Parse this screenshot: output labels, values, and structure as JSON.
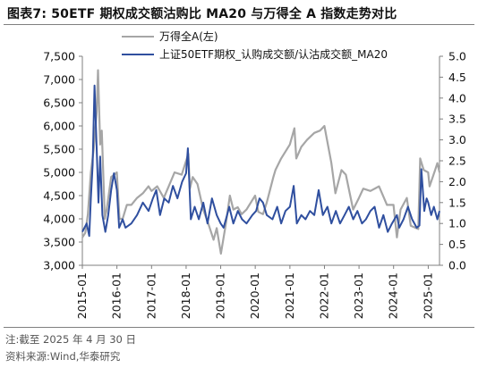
{
  "header": {
    "title": "图表7:  50ETF 期权成交额沽购比 MA20 与万得全 A 指数走势对比"
  },
  "footer": {
    "note": "注:截至 2025 年 4 月 30 日",
    "source": "资料来源:Wind,华泰研究"
  },
  "colors": {
    "wind_a": "#a6a6a6",
    "ratio_ma20": "#2f4f9f",
    "axis": "#7f7f7f"
  },
  "chart_data": {
    "type": "line",
    "title": "",
    "x_ticks": [
      "2015-01",
      "2016-01",
      "2017-01",
      "2018-01",
      "2019-01",
      "2020-01",
      "2021-01",
      "2022-01",
      "2023-01",
      "2024-01",
      "2025-01"
    ],
    "x_range": [
      "2015-01-01",
      "2025-04-30"
    ],
    "left_axis": {
      "ylim": [
        3000,
        7500
      ],
      "ticks": [
        "3,000",
        "3,500",
        "4,000",
        "4,500",
        "5,000",
        "5,500",
        "6,000",
        "6,500",
        "7,000",
        "7,500"
      ]
    },
    "right_axis": {
      "ylim": [
        0.0,
        5.0
      ],
      "ticks": [
        "0.0",
        "0.5",
        "1.0",
        "1.5",
        "2.0",
        "2.5",
        "3.0",
        "3.5",
        "4.0",
        "4.5",
        "5.0"
      ]
    },
    "legend": [
      "万得全A(左)",
      "上证50ETF期权_认购成交额/认沽成交额_MA20"
    ],
    "series": [
      {
        "name": "万得全A(左)",
        "axis": "left",
        "x": [
          "2015-01-01",
          "2015-02-01",
          "2015-03-01",
          "2015-04-01",
          "2015-05-01",
          "2015-06-01",
          "2015-06-15",
          "2015-07-08",
          "2015-07-25",
          "2015-08-26",
          "2015-09-15",
          "2015-11-01",
          "2015-12-31",
          "2016-01-28",
          "2016-03-01",
          "2016-04-15",
          "2016-06-01",
          "2016-08-01",
          "2016-10-01",
          "2016-11-30",
          "2017-01-01",
          "2017-03-01",
          "2017-05-10",
          "2017-07-01",
          "2017-09-01",
          "2017-11-15",
          "2018-01-24",
          "2018-02-09",
          "2018-03-12",
          "2018-05-01",
          "2018-06-30",
          "2018-08-15",
          "2018-10-18",
          "2018-11-20",
          "2019-01-03",
          "2019-02-25",
          "2019-04-08",
          "2019-05-15",
          "2019-06-30",
          "2019-08-10",
          "2019-10-01",
          "2019-12-31",
          "2020-02-03",
          "2020-03-23",
          "2020-05-01",
          "2020-07-10",
          "2020-08-01",
          "2020-10-01",
          "2020-12-31",
          "2021-02-18",
          "2021-03-09",
          "2021-05-01",
          "2021-07-01",
          "2021-09-15",
          "2021-11-15",
          "2021-12-31",
          "2022-03-15",
          "2022-04-27",
          "2022-06-30",
          "2022-08-15",
          "2022-10-31",
          "2022-12-31",
          "2023-02-15",
          "2023-05-01",
          "2023-07-31",
          "2023-10-23",
          "2023-12-31",
          "2024-02-05",
          "2024-03-15",
          "2024-05-20",
          "2024-07-01",
          "2024-09-18",
          "2024-10-08",
          "2024-11-15",
          "2024-12-31",
          "2025-01-15",
          "2025-03-15",
          "2025-04-07",
          "2025-04-30"
        ],
        "values": [
          3600,
          3700,
          4100,
          5000,
          5500,
          6300,
          7200,
          5600,
          5900,
          4000,
          4200,
          4900,
          5000,
          4000,
          4000,
          4300,
          4300,
          4450,
          4550,
          4700,
          4600,
          4700,
          4450,
          4700,
          5000,
          4950,
          5400,
          4650,
          4900,
          4750,
          4200,
          3950,
          3550,
          3800,
          3250,
          3900,
          4500,
          4200,
          4250,
          4100,
          4200,
          4500,
          4150,
          4100,
          4350,
          4900,
          5050,
          5300,
          5600,
          5950,
          5300,
          5550,
          5700,
          5850,
          5900,
          6000,
          5200,
          4550,
          5050,
          4950,
          4200,
          4450,
          4650,
          4600,
          4700,
          4300,
          4300,
          3600,
          4200,
          4450,
          3850,
          3780,
          5300,
          5050,
          5000,
          4700,
          5050,
          5200,
          5000
        ]
      },
      {
        "name": "上证50ETF期权_认购成交额/认沽成交额_MA20",
        "axis": "right",
        "x": [
          "2015-01-01",
          "2015-02-15",
          "2015-03-15",
          "2015-04-01",
          "2015-04-20",
          "2015-05-10",
          "2015-06-01",
          "2015-06-20",
          "2015-07-08",
          "2015-08-01",
          "2015-09-01",
          "2015-10-01",
          "2015-11-01",
          "2015-12-01",
          "2016-01-01",
          "2016-01-25",
          "2016-03-01",
          "2016-04-01",
          "2016-06-01",
          "2016-08-01",
          "2016-10-01",
          "2016-12-01",
          "2017-01-15",
          "2017-02-20",
          "2017-04-01",
          "2017-05-15",
          "2017-07-01",
          "2017-08-15",
          "2017-10-01",
          "2017-11-20",
          "2018-01-01",
          "2018-01-20",
          "2018-02-20",
          "2018-04-01",
          "2018-05-15",
          "2018-07-01",
          "2018-08-15",
          "2018-10-01",
          "2018-11-20",
          "2019-01-01",
          "2019-02-01",
          "2019-02-25",
          "2019-04-01",
          "2019-05-15",
          "2019-07-01",
          "2019-08-15",
          "2019-10-01",
          "2019-12-01",
          "2020-01-10",
          "2020-02-15",
          "2020-03-23",
          "2020-05-01",
          "2020-07-01",
          "2020-08-20",
          "2020-10-01",
          "2020-11-15",
          "2021-01-01",
          "2021-02-10",
          "2021-03-15",
          "2021-05-01",
          "2021-06-15",
          "2021-08-01",
          "2021-09-15",
          "2021-11-01",
          "2021-12-15",
          "2022-02-01",
          "2022-03-15",
          "2022-05-01",
          "2022-06-15",
          "2022-08-01",
          "2022-09-15",
          "2022-11-01",
          "2022-12-15",
          "2023-02-01",
          "2023-03-15",
          "2023-05-01",
          "2023-06-15",
          "2023-08-01",
          "2023-09-15",
          "2023-11-01",
          "2023-12-15",
          "2024-02-05",
          "2024-03-01",
          "2024-04-15",
          "2024-06-01",
          "2024-07-15",
          "2024-09-01",
          "2024-09-30",
          "2024-10-20",
          "2024-11-20",
          "2024-12-15",
          "2025-01-01",
          "2025-02-01",
          "2025-03-01",
          "2025-04-07",
          "2025-04-30"
        ],
        "values": [
          0.8,
          1.0,
          0.7,
          1.6,
          2.4,
          4.3,
          2.8,
          1.5,
          2.6,
          1.2,
          0.8,
          1.2,
          1.8,
          2.2,
          1.8,
          0.9,
          1.1,
          0.9,
          1.0,
          1.2,
          1.5,
          1.3,
          1.6,
          1.8,
          1.2,
          1.6,
          1.5,
          1.9,
          1.6,
          2.0,
          2.2,
          2.8,
          1.1,
          1.4,
          1.1,
          1.5,
          1.0,
          1.6,
          1.2,
          1.0,
          0.9,
          1.1,
          1.4,
          1.0,
          1.3,
          1.1,
          1.0,
          1.2,
          1.3,
          1.6,
          1.5,
          1.2,
          1.1,
          1.4,
          1.0,
          1.3,
          1.4,
          1.9,
          1.0,
          1.2,
          1.1,
          1.3,
          1.2,
          1.8,
          1.2,
          1.4,
          1.0,
          1.3,
          1.0,
          1.2,
          1.4,
          1.1,
          1.3,
          1.0,
          1.1,
          1.3,
          1.4,
          0.9,
          1.2,
          0.8,
          1.0,
          1.2,
          0.9,
          1.1,
          1.4,
          1.1,
          0.9,
          0.95,
          2.3,
          1.3,
          1.6,
          1.5,
          1.2,
          1.4,
          1.1,
          1.3
        ]
      }
    ]
  }
}
